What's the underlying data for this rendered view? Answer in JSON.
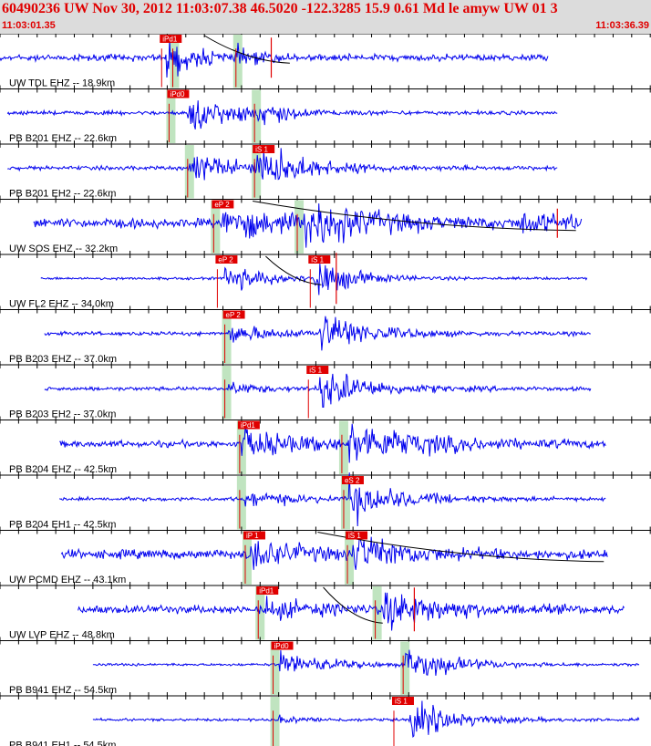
{
  "header": {
    "title": "60490236 UW Nov 30, 2012 11:03:07.38   46.5020 -122.3285 15.9 0.61 Md le amyw UW 01   3",
    "start_time": "11:03:01.35",
    "end_time": "11:03:36.39"
  },
  "colors": {
    "header_bg": "#dcdcdc",
    "title": "#e00000",
    "trace": "#0000ee",
    "pick_box": "#e00000",
    "pick_window": "#c0e4c0",
    "grid": "#000000",
    "predicted_curve": "#000000"
  },
  "chart_data": {
    "type": "seismogram",
    "x_unit": "s",
    "x_range": [
      0,
      35.04
    ],
    "traces": [
      {
        "label": "UW TDL EHZ -- 18.9km",
        "start": 0.0,
        "end": 29.5,
        "amp": 5,
        "picks": [
          {
            "label": "iPd1",
            "t": 8.7,
            "window": false
          },
          {
            "label": "",
            "t": 9.3,
            "window": true
          },
          {
            "label": "",
            "t": 12.7,
            "window": true
          }
        ],
        "events": [
          {
            "t": 8.9,
            "amp": 32,
            "dur": 1.5
          },
          {
            "t": 12.8,
            "amp": 10,
            "dur": 1.2
          }
        ],
        "red_spikes": [
          {
            "t": 14.6,
            "h": 22
          }
        ],
        "curve": {
          "t0": 11.0,
          "t1": 15.6,
          "drop": 8
        }
      },
      {
        "label": "PB B201 EHZ -- 22.6km",
        "start": 0.4,
        "end": 30.0,
        "amp": 3,
        "picks": [
          {
            "label": "iPd0",
            "t": 9.1,
            "window": true
          },
          {
            "label": "",
            "t": 13.7,
            "window": true
          }
        ],
        "events": [
          {
            "t": 10.1,
            "amp": 30,
            "dur": 2.4
          },
          {
            "t": 13.8,
            "amp": 14,
            "dur": 1.5
          }
        ],
        "red_spikes": [],
        "curve": null
      },
      {
        "label": "PB B201 EH2 -- 22.6km",
        "start": 0.4,
        "end": 30.0,
        "amp": 3,
        "picks": [
          {
            "label": "",
            "t": 10.1,
            "window": true
          },
          {
            "label": "iS 1",
            "t": 13.7,
            "window": true
          }
        ],
        "events": [
          {
            "t": 10.1,
            "amp": 22,
            "dur": 3.0
          },
          {
            "t": 13.8,
            "amp": 32,
            "dur": 2.5
          }
        ],
        "red_spikes": [],
        "curve": null
      },
      {
        "label": "UW SOS EHZ -- 32.2km",
        "start": 1.8,
        "end": 31.3,
        "amp": 7,
        "picks": [
          {
            "label": "eP 2",
            "t": 11.5,
            "window": true
          },
          {
            "label": "",
            "t": 16.0,
            "window": true
          }
        ],
        "events": [
          {
            "t": 11.9,
            "amp": 24,
            "dur": 3.5
          },
          {
            "t": 16.3,
            "amp": 32,
            "dur": 3.5
          },
          {
            "t": 28.0,
            "amp": 14,
            "dur": 2.5
          }
        ],
        "red_spikes": [
          {
            "t": 30.0,
            "h": 16
          }
        ],
        "curve": {
          "t0": 13.6,
          "t1": 31.0,
          "drop": 12
        }
      },
      {
        "label": "UW FL2 EHZ -- 34.0km",
        "start": 2.2,
        "end": 31.6,
        "amp": 2,
        "picks": [
          {
            "label": "eP 2",
            "t": 11.7,
            "window": false
          },
          {
            "label": "iS 1",
            "t": 16.7,
            "window": false
          }
        ],
        "events": [
          {
            "t": 12.1,
            "amp": 20,
            "dur": 2.5
          },
          {
            "t": 16.9,
            "amp": 32,
            "dur": 1.8
          }
        ],
        "red_spikes": [
          {
            "t": 18.1,
            "h": 28
          }
        ],
        "curve": {
          "t0": 14.3,
          "t1": 17.3,
          "drop": 10
        }
      },
      {
        "label": "PB B203 EHZ -- 37.0km",
        "start": 2.4,
        "end": 31.8,
        "amp": 3,
        "picks": [
          {
            "label": "eP 2",
            "t": 12.1,
            "window": true
          }
        ],
        "events": [
          {
            "t": 12.3,
            "amp": 14,
            "dur": 2.5
          },
          {
            "t": 17.2,
            "amp": 32,
            "dur": 2.5
          }
        ],
        "red_spikes": [],
        "curve": null
      },
      {
        "label": "PB B203 EH2 -- 37.0km",
        "start": 2.4,
        "end": 31.8,
        "amp": 3,
        "picks": [
          {
            "label": "",
            "t": 12.1,
            "window": true
          },
          {
            "label": "iS 1",
            "t": 16.6,
            "window": false
          }
        ],
        "events": [
          {
            "t": 12.3,
            "amp": 8,
            "dur": 2.0
          },
          {
            "t": 17.2,
            "amp": 32,
            "dur": 2.5
          }
        ],
        "red_spikes": [],
        "curve": null
      },
      {
        "label": "PB B204 EHZ -- 42.5km",
        "start": 3.2,
        "end": 32.6,
        "amp": 5,
        "picks": [
          {
            "label": "iPd1",
            "t": 12.9,
            "window": true
          },
          {
            "label": "",
            "t": 18.4,
            "window": true
          }
        ],
        "events": [
          {
            "t": 13.0,
            "amp": 24,
            "dur": 3.0
          },
          {
            "t": 18.8,
            "amp": 30,
            "dur": 4.0
          }
        ],
        "red_spikes": [],
        "curve": null
      },
      {
        "label": "PB B204 EH1 -- 42.5km",
        "start": 3.2,
        "end": 32.6,
        "amp": 3,
        "picks": [
          {
            "label": "",
            "t": 12.9,
            "window": true
          },
          {
            "label": "eS 2",
            "t": 18.5,
            "window": true
          }
        ],
        "events": [
          {
            "t": 13.2,
            "amp": 12,
            "dur": 2.5
          },
          {
            "t": 18.8,
            "amp": 32,
            "dur": 2.5
          }
        ],
        "red_spikes": [],
        "curve": null
      },
      {
        "label": "UW PCMD EHZ -- 43.1km",
        "start": 3.3,
        "end": 32.7,
        "amp": 7,
        "picks": [
          {
            "label": "iP 1",
            "t": 13.2,
            "window": true
          },
          {
            "label": "iS 1",
            "t": 18.7,
            "window": true
          }
        ],
        "events": [
          {
            "t": 13.4,
            "amp": 24,
            "dur": 2.5
          },
          {
            "t": 19.0,
            "amp": 30,
            "dur": 2.5
          }
        ],
        "red_spikes": [],
        "curve": {
          "t0": 17.1,
          "t1": 32.5,
          "drop": 12
        }
      },
      {
        "label": "UW LVP EHZ -- 48.8km",
        "start": 4.2,
        "end": 33.6,
        "amp": 6,
        "picks": [
          {
            "label": "iPd1",
            "t": 13.9,
            "window": true
          },
          {
            "label": "",
            "t": 20.2,
            "window": true
          }
        ],
        "events": [
          {
            "t": 14.1,
            "amp": 14,
            "dur": 3.0
          },
          {
            "t": 20.6,
            "amp": 30,
            "dur": 3.0
          }
        ],
        "red_spikes": [
          {
            "t": 22.3,
            "h": 24
          }
        ],
        "curve": {
          "t0": 17.4,
          "t1": 20.6,
          "drop": 26
        }
      },
      {
        "label": "PB B941 EHZ -- 54.5km",
        "start": 5.0,
        "end": 34.4,
        "amp": 2,
        "picks": [
          {
            "label": "iPd0",
            "t": 14.7,
            "window": true
          },
          {
            "label": "",
            "t": 21.7,
            "window": true
          }
        ],
        "events": [
          {
            "t": 15.0,
            "amp": 20,
            "dur": 2.5
          },
          {
            "t": 21.8,
            "amp": 28,
            "dur": 2.5
          }
        ],
        "red_spikes": [],
        "curve": null
      },
      {
        "label": "PB B941 EH1 -- 54.5km",
        "start": 5.0,
        "end": 34.4,
        "amp": 2,
        "picks": [
          {
            "label": "",
            "t": 14.7,
            "window": true
          },
          {
            "label": "iS 1",
            "t": 21.2,
            "window": false
          }
        ],
        "events": [
          {
            "t": 15.0,
            "amp": 5,
            "dur": 2.0
          },
          {
            "t": 22.0,
            "amp": 30,
            "dur": 2.5
          }
        ],
        "red_spikes": [],
        "curve": null
      }
    ]
  }
}
